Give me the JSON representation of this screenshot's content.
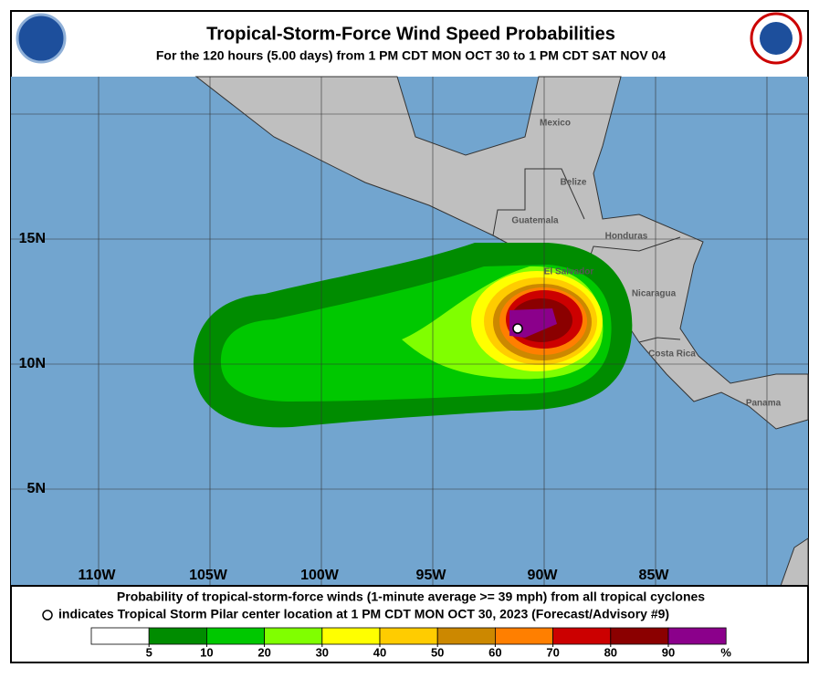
{
  "header": {
    "title": "Tropical-Storm-Force Wind Speed Probabilities",
    "subtitle": "For the 120 hours (5.00 days) from 1 PM CDT MON OCT 30 to 1 PM CDT SAT NOV 04"
  },
  "map": {
    "lat_labels": [
      "15N",
      "10N",
      "5N"
    ],
    "lon_labels": [
      "110W",
      "105W",
      "100W",
      "95W",
      "90W",
      "85W"
    ],
    "countries": [
      "Mexico",
      "Belize",
      "Guatemala",
      "Honduras",
      "El Salvador",
      "Nicaragua",
      "Costa Rica",
      "Panama"
    ]
  },
  "footer": {
    "line1": "Probability of tropical-storm-force winds (1-minute average >= 39 mph) from all tropical cyclones",
    "line2": "indicates Tropical Storm Pilar center location at 1 PM CDT MON OCT 30, 2023 (Forecast/Advisory #9)"
  },
  "legend": {
    "colors": [
      "#ffffff",
      "#008c00",
      "#00c800",
      "#80ff00",
      "#ffff00",
      "#ffcc00",
      "#cc8800",
      "#ff7f00",
      "#cc0000",
      "#8b0000",
      "#8b008b"
    ],
    "ticks": [
      5,
      10,
      20,
      30,
      40,
      50,
      60,
      70,
      80,
      90
    ],
    "unit": "%"
  }
}
